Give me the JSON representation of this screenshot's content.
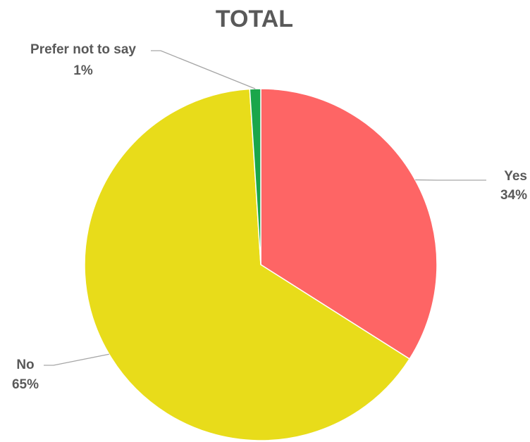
{
  "chart_data": {
    "type": "pie",
    "title": "TOTAL",
    "start_angle_deg": 0,
    "direction": "clockwise",
    "slices": [
      {
        "label": "Yes",
        "value": 34,
        "percent_label": "34%",
        "color": "#fe6565"
      },
      {
        "label": "No",
        "value": 65,
        "percent_label": "65%",
        "color": "#e8dc1a"
      },
      {
        "label": "Prefer not to say",
        "value": 1,
        "percent_label": "1%",
        "color": "#1aa64a"
      }
    ]
  }
}
